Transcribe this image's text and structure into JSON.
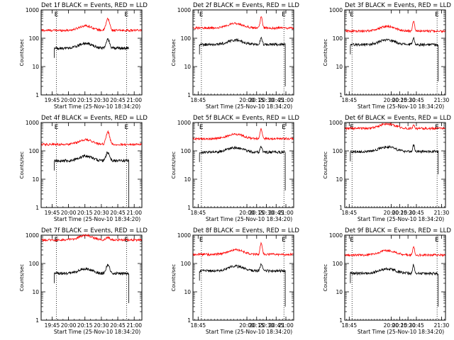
{
  "figure": {
    "ylabel": "Counts/sec",
    "xlabel": "Start Time (25-Nov-10 18:34:20)",
    "colors": {
      "events": "#000000",
      "lld": "#ff0000",
      "background": "#ffffff"
    },
    "eclipse_marker": "E"
  },
  "chart_data": [
    {
      "type": "line",
      "title": "Det 1f BLACK = Events, RED = LLD",
      "yscale": "log",
      "ylim": [
        1,
        1000
      ],
      "xlim": [
        "19:35",
        "21:07"
      ],
      "xticks": [
        "19:45",
        "20:00",
        "20:15",
        "20:30",
        "20:45",
        "21:00"
      ],
      "yticks": [
        "1",
        "10",
        "100",
        "1000"
      ],
      "event_range": [
        "19:47",
        "20:55"
      ],
      "dotted_lines": [
        "19:49",
        "20:53"
      ],
      "red_level": 190,
      "red_peak": 480,
      "black_level": 45,
      "black_peak": 90,
      "black_drop": null
    },
    {
      "type": "line",
      "title": "Det 2f BLACK = Events, RED = LLD",
      "yscale": "log",
      "ylim": [
        1,
        1000
      ],
      "xlim": [
        "18:37",
        "21:12"
      ],
      "xticks": [
        "18:45",
        "20:00",
        "20:15",
        "20:30",
        "20:45",
        "21:00"
      ],
      "yticks": [
        "1",
        "10",
        "100",
        "1000"
      ],
      "event_range": [
        "18:47",
        "20:59"
      ],
      "dotted_lines": [
        "18:50",
        "20:57"
      ],
      "red_level": 230,
      "red_peak": 560,
      "black_level": 60,
      "black_peak": 110,
      "black_drop": 2
    },
    {
      "type": "line",
      "title": "Det 3f BLACK = Events, RED = LLD",
      "yscale": "log",
      "ylim": [
        1,
        1000
      ],
      "xlim": [
        "18:37",
        "21:37"
      ],
      "xticks": [
        "18:45",
        "20:00",
        "20:15",
        "20:30",
        "20:45",
        "21:30"
      ],
      "yticks": [
        "1",
        "10",
        "100",
        "1000"
      ],
      "event_range": [
        "18:47",
        "21:24"
      ],
      "dotted_lines": [
        "18:50",
        "21:22"
      ],
      "red_level": 180,
      "red_peak": 420,
      "black_level": 60,
      "black_peak": 100,
      "black_drop": 3
    },
    {
      "type": "line",
      "title": "Det 4f BLACK = Events, RED = LLD",
      "yscale": "log",
      "ylim": [
        1,
        1000
      ],
      "xlim": [
        "19:35",
        "21:07"
      ],
      "xticks": [
        "19:45",
        "20:00",
        "20:15",
        "20:30",
        "20:45",
        "21:00"
      ],
      "yticks": [
        "1",
        "10",
        "100",
        "1000"
      ],
      "event_range": [
        "19:47",
        "20:55"
      ],
      "dotted_lines": [
        "19:49",
        "20:53"
      ],
      "red_level": 170,
      "red_peak": 460,
      "black_level": 45,
      "black_peak": 90,
      "black_drop": 1
    },
    {
      "type": "line",
      "title": "Det 5f BLACK = Events, RED = LLD",
      "yscale": "log",
      "ylim": [
        1,
        1000
      ],
      "xlim": [
        "18:37",
        "21:12"
      ],
      "xticks": [
        "18:45",
        "20:00",
        "20:15",
        "20:30",
        "20:45",
        "21:00"
      ],
      "yticks": [
        "1",
        "10",
        "100",
        "1000"
      ],
      "event_range": [
        "18:47",
        "20:59"
      ],
      "dotted_lines": [
        "18:50",
        "20:57"
      ],
      "red_level": 270,
      "red_peak": 600,
      "black_level": 90,
      "black_peak": 140,
      "black_drop": 4
    },
    {
      "type": "line",
      "title": "Det 6f BLACK = Events, RED = LLD",
      "yscale": "log",
      "ylim": [
        1,
        1000
      ],
      "xlim": [
        "18:37",
        "21:37"
      ],
      "xticks": [
        "18:45",
        "20:00",
        "20:15",
        "20:30",
        "20:45",
        "21:30"
      ],
      "yticks": [
        "1",
        "10",
        "100",
        "1000"
      ],
      "event_range": [
        "18:47",
        "21:24"
      ],
      "dotted_lines": [
        "18:50",
        "21:22"
      ],
      "red_level": 620,
      "red_peak": 800,
      "black_level": 95,
      "black_peak": 160,
      "black_drop": 15
    },
    {
      "type": "line",
      "title": "Det 7f BLACK = Events, RED = LLD",
      "yscale": "log",
      "ylim": [
        1,
        1000
      ],
      "xlim": [
        "19:35",
        "21:07"
      ],
      "xticks": [
        "19:45",
        "20:00",
        "20:15",
        "20:30",
        "20:45",
        "21:00"
      ],
      "yticks": [
        "1",
        "10",
        "100",
        "1000"
      ],
      "event_range": [
        "19:47",
        "20:55"
      ],
      "dotted_lines": [
        "19:49",
        "20:53"
      ],
      "red_level": 680,
      "red_peak": 850,
      "black_level": 45,
      "black_peak": 90,
      "black_drop": 4
    },
    {
      "type": "line",
      "title": "Det 8f BLACK = Events, RED = LLD",
      "yscale": "log",
      "ylim": [
        1,
        1000
      ],
      "xlim": [
        "18:37",
        "21:12"
      ],
      "xticks": [
        "18:45",
        "20:00",
        "20:15",
        "20:30",
        "20:45",
        "21:00"
      ],
      "yticks": [
        "1",
        "10",
        "100",
        "1000"
      ],
      "event_range": [
        "18:47",
        "20:59"
      ],
      "dotted_lines": [
        "18:50",
        "20:57"
      ],
      "red_level": 210,
      "red_peak": 520,
      "black_level": 55,
      "black_peak": 100,
      "black_drop": 3
    },
    {
      "type": "line",
      "title": "Det 9f BLACK = Events, RED = LLD",
      "yscale": "log",
      "ylim": [
        1,
        1000
      ],
      "xlim": [
        "18:37",
        "21:37"
      ],
      "xticks": [
        "18:45",
        "20:00",
        "20:15",
        "20:30",
        "20:45",
        "21:30"
      ],
      "yticks": [
        "1",
        "10",
        "100",
        "1000"
      ],
      "event_range": [
        "18:47",
        "21:24"
      ],
      "dotted_lines": [
        "18:50",
        "21:22"
      ],
      "red_level": 200,
      "red_peak": 420,
      "black_level": 45,
      "black_peak": 90,
      "black_drop": 3
    }
  ]
}
